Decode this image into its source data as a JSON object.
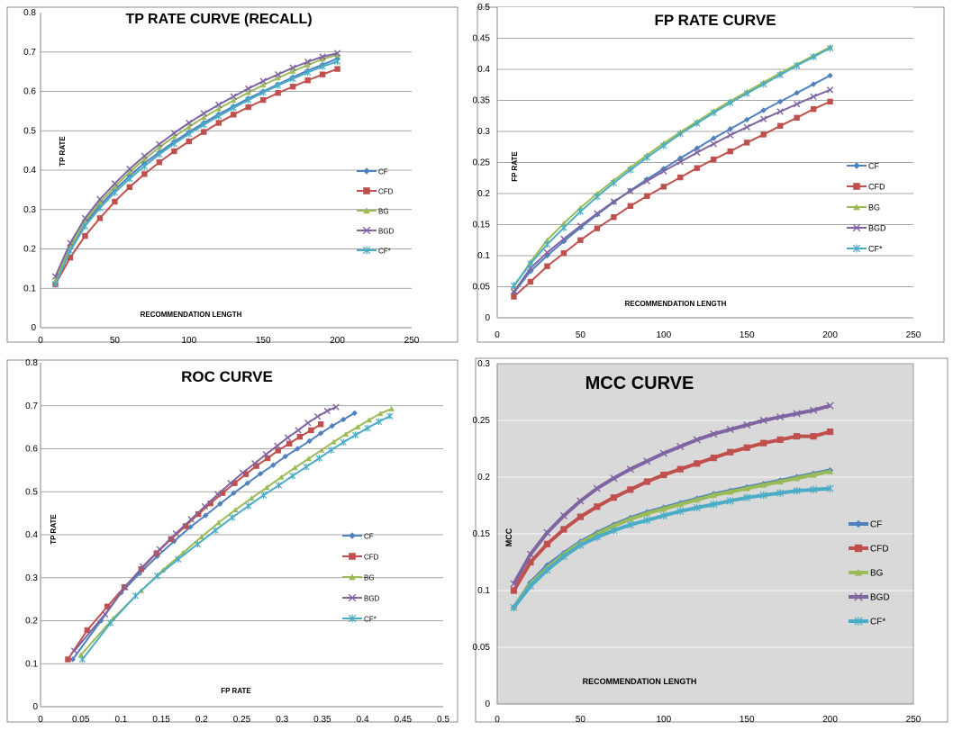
{
  "series_colors": {
    "CF": "#4f81bd",
    "CFD": "#c0504d",
    "BG": "#9bbb59",
    "BGD": "#8064a2",
    "CF*": "#4bacc6"
  },
  "chart_data": [
    {
      "type": "line",
      "title": "TP RATE CURVE (RECALL)",
      "xlabel": "RECOMMENDATION  LENGTH",
      "ylabel": "TP RATE",
      "xlim": [
        0,
        250
      ],
      "ylim": [
        0,
        0.8
      ],
      "xticks": [
        "0",
        "50",
        "100",
        "150",
        "200",
        "250"
      ],
      "yticks": [
        "0",
        "0.1",
        "0.2",
        "0.3",
        "0.4",
        "0.5",
        "0.6",
        "0.7",
        "0.8"
      ],
      "legend_position": "right",
      "grid": "horizontal",
      "background": "white",
      "series": [
        {
          "name": "CF",
          "marker": "diamond",
          "x": [
            10,
            20,
            30,
            40,
            50,
            60,
            70,
            80,
            90,
            100,
            110,
            120,
            130,
            140,
            150,
            160,
            170,
            180,
            190,
            200
          ],
          "values": [
            0.11,
            0.2,
            0.265,
            0.31,
            0.35,
            0.385,
            0.418,
            0.445,
            0.472,
            0.497,
            0.52,
            0.542,
            0.562,
            0.582,
            0.6,
            0.618,
            0.636,
            0.653,
            0.668,
            0.683
          ]
        },
        {
          "name": "CFD",
          "marker": "square",
          "x": [
            10,
            20,
            30,
            40,
            50,
            60,
            70,
            80,
            90,
            100,
            110,
            120,
            130,
            140,
            150,
            160,
            170,
            180,
            190,
            200
          ],
          "values": [
            0.11,
            0.178,
            0.233,
            0.278,
            0.32,
            0.357,
            0.39,
            0.42,
            0.448,
            0.473,
            0.497,
            0.52,
            0.541,
            0.56,
            0.578,
            0.596,
            0.612,
            0.628,
            0.643,
            0.657
          ]
        },
        {
          "name": "BG",
          "marker": "triangle",
          "x": [
            10,
            20,
            30,
            40,
            50,
            60,
            70,
            80,
            90,
            100,
            110,
            120,
            130,
            140,
            150,
            160,
            170,
            180,
            190,
            200
          ],
          "values": [
            0.12,
            0.205,
            0.27,
            0.318,
            0.358,
            0.395,
            0.428,
            0.458,
            0.485,
            0.51,
            0.534,
            0.556,
            0.577,
            0.597,
            0.616,
            0.634,
            0.651,
            0.667,
            0.682,
            0.693
          ]
        },
        {
          "name": "BGD",
          "marker": "x",
          "x": [
            10,
            20,
            30,
            40,
            50,
            60,
            70,
            80,
            90,
            100,
            110,
            120,
            130,
            140,
            150,
            160,
            170,
            180,
            190,
            200
          ],
          "values": [
            0.13,
            0.215,
            0.278,
            0.326,
            0.366,
            0.403,
            0.436,
            0.466,
            0.494,
            0.52,
            0.544,
            0.566,
            0.587,
            0.607,
            0.626,
            0.643,
            0.66,
            0.675,
            0.688,
            0.697
          ]
        },
        {
          "name": "CF*",
          "marker": "star",
          "x": [
            10,
            20,
            30,
            40,
            50,
            60,
            70,
            80,
            90,
            100,
            110,
            120,
            130,
            140,
            150,
            160,
            170,
            180,
            190,
            200
          ],
          "values": [
            0.11,
            0.195,
            0.258,
            0.304,
            0.343,
            0.378,
            0.41,
            0.44,
            0.467,
            0.492,
            0.515,
            0.537,
            0.558,
            0.578,
            0.597,
            0.615,
            0.632,
            0.648,
            0.663,
            0.676
          ]
        }
      ]
    },
    {
      "type": "line",
      "title": "FP RATE CURVE",
      "xlabel": "RECOMMENDATION  LENGTH",
      "ylabel": "FP RATE",
      "xlim": [
        0,
        250
      ],
      "ylim": [
        0,
        0.5
      ],
      "xticks": [
        "0",
        "50",
        "100",
        "150",
        "200",
        "250"
      ],
      "yticks": [
        "0",
        "0.05",
        "0.1",
        "0.15",
        "0.2",
        "0.25",
        "0.3",
        "0.35",
        "0.4",
        "0.45",
        "0.5"
      ],
      "legend_position": "right",
      "grid": "horizontal",
      "background": "white",
      "series": [
        {
          "name": "CF",
          "marker": "diamond",
          "x": [
            10,
            20,
            30,
            40,
            50,
            60,
            70,
            80,
            90,
            100,
            110,
            120,
            130,
            140,
            150,
            160,
            170,
            180,
            190,
            200
          ],
          "values": [
            0.04,
            0.075,
            0.1,
            0.123,
            0.145,
            0.166,
            0.186,
            0.205,
            0.223,
            0.24,
            0.257,
            0.273,
            0.289,
            0.304,
            0.319,
            0.334,
            0.348,
            0.362,
            0.376,
            0.39
          ]
        },
        {
          "name": "CFD",
          "marker": "square",
          "x": [
            10,
            20,
            30,
            40,
            50,
            60,
            70,
            80,
            90,
            100,
            110,
            120,
            130,
            140,
            150,
            160,
            170,
            180,
            190,
            200
          ],
          "values": [
            0.034,
            0.058,
            0.083,
            0.104,
            0.125,
            0.144,
            0.162,
            0.18,
            0.196,
            0.211,
            0.226,
            0.241,
            0.255,
            0.268,
            0.282,
            0.295,
            0.309,
            0.322,
            0.336,
            0.348
          ]
        },
        {
          "name": "BG",
          "marker": "triangle",
          "x": [
            10,
            20,
            30,
            40,
            50,
            60,
            70,
            80,
            90,
            100,
            110,
            120,
            130,
            140,
            150,
            160,
            170,
            180,
            190,
            200
          ],
          "values": [
            0.05,
            0.09,
            0.125,
            0.152,
            0.177,
            0.2,
            0.221,
            0.242,
            0.262,
            0.281,
            0.299,
            0.316,
            0.333,
            0.349,
            0.364,
            0.379,
            0.394,
            0.408,
            0.422,
            0.436
          ]
        },
        {
          "name": "BGD",
          "marker": "x",
          "x": [
            10,
            20,
            30,
            40,
            50,
            60,
            70,
            80,
            90,
            100,
            110,
            120,
            130,
            140,
            150,
            160,
            170,
            180,
            190,
            200
          ],
          "values": [
            0.042,
            0.08,
            0.105,
            0.127,
            0.148,
            0.168,
            0.187,
            0.204,
            0.22,
            0.236,
            0.251,
            0.266,
            0.28,
            0.294,
            0.307,
            0.32,
            0.332,
            0.344,
            0.356,
            0.367
          ]
        },
        {
          "name": "CF*",
          "marker": "star",
          "x": [
            10,
            20,
            30,
            40,
            50,
            60,
            70,
            80,
            90,
            100,
            110,
            120,
            130,
            140,
            150,
            160,
            170,
            180,
            190,
            200
          ],
          "values": [
            0.052,
            0.087,
            0.118,
            0.145,
            0.171,
            0.195,
            0.217,
            0.238,
            0.258,
            0.277,
            0.296,
            0.313,
            0.33,
            0.346,
            0.361,
            0.376,
            0.391,
            0.406,
            0.42,
            0.434
          ]
        }
      ]
    },
    {
      "type": "line",
      "title": "ROC CURVE",
      "xlabel": "FP RATE",
      "ylabel": "TP RATE",
      "xlim": [
        0,
        0.5
      ],
      "ylim": [
        0,
        0.8
      ],
      "xticks": [
        "0",
        "0.05",
        "0.1",
        "0.15",
        "0.2",
        "0.25",
        "0.3",
        "0.35",
        "0.4",
        "0.45",
        "0.5"
      ],
      "yticks": [
        "0",
        "0.1",
        "0.2",
        "0.3",
        "0.4",
        "0.5",
        "0.6",
        "0.7",
        "0.8"
      ],
      "legend_position": "right",
      "grid": "horizontal",
      "background": "white",
      "series": [
        {
          "name": "CF",
          "marker": "diamond",
          "x": [
            0.04,
            0.075,
            0.1,
            0.123,
            0.145,
            0.166,
            0.186,
            0.205,
            0.223,
            0.24,
            0.257,
            0.273,
            0.289,
            0.304,
            0.319,
            0.334,
            0.348,
            0.362,
            0.376,
            0.39
          ],
          "values": [
            0.11,
            0.2,
            0.265,
            0.31,
            0.35,
            0.385,
            0.418,
            0.445,
            0.472,
            0.497,
            0.52,
            0.542,
            0.562,
            0.582,
            0.6,
            0.618,
            0.636,
            0.653,
            0.668,
            0.683
          ]
        },
        {
          "name": "CFD",
          "marker": "square",
          "x": [
            0.034,
            0.058,
            0.083,
            0.104,
            0.125,
            0.144,
            0.162,
            0.18,
            0.196,
            0.211,
            0.226,
            0.241,
            0.255,
            0.268,
            0.282,
            0.295,
            0.309,
            0.322,
            0.336,
            0.348
          ],
          "values": [
            0.11,
            0.178,
            0.233,
            0.278,
            0.32,
            0.357,
            0.39,
            0.42,
            0.448,
            0.473,
            0.497,
            0.52,
            0.541,
            0.56,
            0.578,
            0.596,
            0.612,
            0.628,
            0.643,
            0.657
          ]
        },
        {
          "name": "BG",
          "marker": "triangle",
          "x": [
            0.05,
            0.09,
            0.125,
            0.152,
            0.177,
            0.2,
            0.221,
            0.242,
            0.262,
            0.281,
            0.299,
            0.316,
            0.333,
            0.349,
            0.364,
            0.379,
            0.394,
            0.408,
            0.422,
            0.436
          ],
          "values": [
            0.12,
            0.205,
            0.27,
            0.318,
            0.358,
            0.395,
            0.428,
            0.458,
            0.485,
            0.51,
            0.534,
            0.556,
            0.577,
            0.597,
            0.616,
            0.634,
            0.651,
            0.667,
            0.682,
            0.693
          ]
        },
        {
          "name": "BGD",
          "marker": "x",
          "x": [
            0.042,
            0.08,
            0.105,
            0.127,
            0.148,
            0.168,
            0.187,
            0.204,
            0.22,
            0.236,
            0.251,
            0.266,
            0.28,
            0.294,
            0.307,
            0.32,
            0.332,
            0.344,
            0.356,
            0.367
          ],
          "values": [
            0.13,
            0.215,
            0.278,
            0.326,
            0.366,
            0.403,
            0.436,
            0.466,
            0.494,
            0.52,
            0.544,
            0.566,
            0.587,
            0.607,
            0.626,
            0.643,
            0.66,
            0.675,
            0.688,
            0.697
          ]
        },
        {
          "name": "CF*",
          "marker": "star",
          "x": [
            0.052,
            0.087,
            0.118,
            0.145,
            0.171,
            0.195,
            0.217,
            0.238,
            0.258,
            0.277,
            0.296,
            0.313,
            0.33,
            0.346,
            0.361,
            0.376,
            0.391,
            0.406,
            0.42,
            0.434
          ],
          "values": [
            0.11,
            0.195,
            0.258,
            0.304,
            0.343,
            0.378,
            0.41,
            0.44,
            0.467,
            0.492,
            0.515,
            0.537,
            0.558,
            0.578,
            0.597,
            0.615,
            0.632,
            0.648,
            0.663,
            0.676
          ]
        }
      ]
    },
    {
      "type": "line",
      "title": "MCC CURVE",
      "xlabel": "RECOMMENDATION  LENGTH",
      "ylabel": "MCC",
      "xlim": [
        0,
        250
      ],
      "ylim": [
        0,
        0.3
      ],
      "xticks": [
        "0",
        "50",
        "100",
        "150",
        "200",
        "250"
      ],
      "yticks": [
        "0",
        "0.05",
        "0.1",
        "0.15",
        "0.2",
        "0.25",
        "0.3"
      ],
      "legend_position": "right",
      "grid": "horizontal",
      "background": "light-gray",
      "series": [
        {
          "name": "CF",
          "marker": "diamond",
          "x": [
            10,
            20,
            30,
            40,
            50,
            60,
            70,
            80,
            90,
            100,
            110,
            120,
            130,
            140,
            150,
            160,
            170,
            180,
            190,
            200
          ],
          "values": [
            0.085,
            0.107,
            0.122,
            0.133,
            0.143,
            0.151,
            0.158,
            0.164,
            0.169,
            0.173,
            0.177,
            0.181,
            0.185,
            0.188,
            0.191,
            0.194,
            0.197,
            0.2,
            0.203,
            0.206
          ]
        },
        {
          "name": "CFD",
          "marker": "square",
          "x": [
            10,
            20,
            30,
            40,
            50,
            60,
            70,
            80,
            90,
            100,
            110,
            120,
            130,
            140,
            150,
            160,
            170,
            180,
            190,
            200
          ],
          "values": [
            0.1,
            0.125,
            0.141,
            0.154,
            0.165,
            0.174,
            0.182,
            0.189,
            0.196,
            0.202,
            0.207,
            0.212,
            0.217,
            0.222,
            0.226,
            0.23,
            0.233,
            0.236,
            0.236,
            0.24
          ]
        },
        {
          "name": "BG",
          "marker": "triangle",
          "x": [
            10,
            20,
            30,
            40,
            50,
            60,
            70,
            80,
            90,
            100,
            110,
            120,
            130,
            140,
            150,
            160,
            170,
            180,
            190,
            200
          ],
          "values": [
            0.085,
            0.106,
            0.12,
            0.132,
            0.142,
            0.15,
            0.157,
            0.163,
            0.168,
            0.172,
            0.176,
            0.18,
            0.184,
            0.187,
            0.19,
            0.193,
            0.196,
            0.199,
            0.202,
            0.205
          ]
        },
        {
          "name": "BGD",
          "marker": "x",
          "x": [
            10,
            20,
            30,
            40,
            50,
            60,
            70,
            80,
            90,
            100,
            110,
            120,
            130,
            140,
            150,
            160,
            170,
            180,
            190,
            200
          ],
          "values": [
            0.106,
            0.132,
            0.151,
            0.166,
            0.179,
            0.19,
            0.199,
            0.207,
            0.214,
            0.221,
            0.227,
            0.233,
            0.238,
            0.242,
            0.246,
            0.25,
            0.253,
            0.256,
            0.259,
            0.263
          ]
        },
        {
          "name": "CF*",
          "marker": "star",
          "x": [
            10,
            20,
            30,
            40,
            50,
            60,
            70,
            80,
            90,
            100,
            110,
            120,
            130,
            140,
            150,
            160,
            170,
            180,
            190,
            200
          ],
          "values": [
            0.085,
            0.104,
            0.118,
            0.13,
            0.14,
            0.147,
            0.153,
            0.158,
            0.162,
            0.166,
            0.17,
            0.173,
            0.176,
            0.179,
            0.182,
            0.184,
            0.186,
            0.188,
            0.189,
            0.19
          ]
        }
      ]
    }
  ]
}
